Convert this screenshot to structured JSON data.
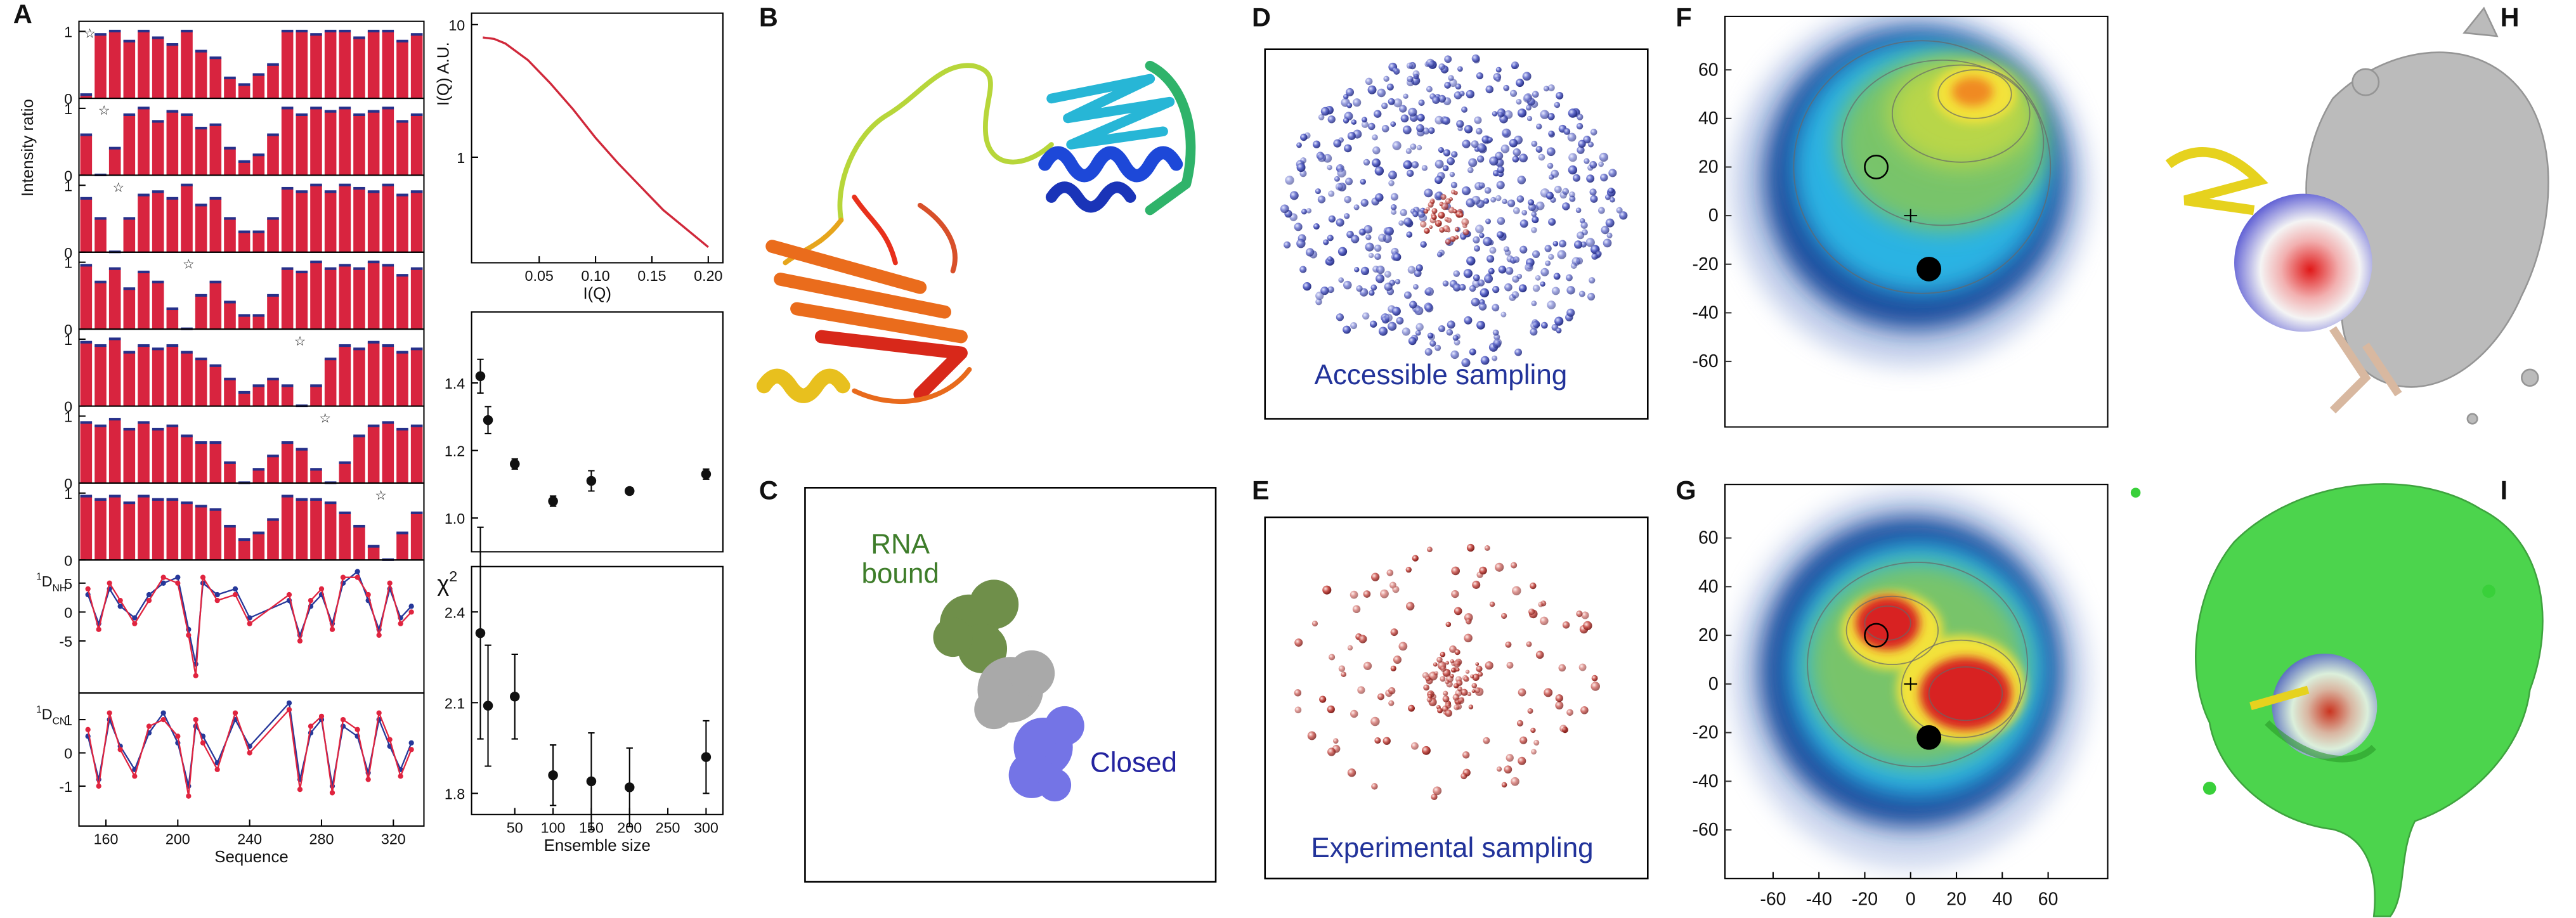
{
  "panel_labels": [
    "A",
    "B",
    "C",
    "D",
    "E",
    "F",
    "G",
    "H",
    "I"
  ],
  "c_labels": {
    "rna": [
      "RNA",
      "bound"
    ],
    "closed": "Closed"
  },
  "d_caption": "Accessible sampling",
  "e_caption": "Experimental sampling",
  "chart_data": [
    {
      "type": "strips",
      "ylabel": "Intensity ratio",
      "color": "#d8243f",
      "cap_color": "#26308a",
      "xlim": [
        145,
        337
      ],
      "ylim": [
        0,
        1.15
      ],
      "yticks": [
        0,
        1
      ],
      "x": [
        149,
        157,
        165,
        173,
        181,
        189,
        197,
        205,
        213,
        221,
        229,
        237,
        245,
        253,
        261,
        269,
        277,
        285,
        293,
        301,
        309,
        317,
        325,
        333
      ],
      "markers": {
        "symbol": "☆",
        "x": [
          151,
          159,
          167,
          206,
          268,
          282,
          313
        ]
      },
      "strips": [
        {
          "values": [
            0.05,
            0.95,
            1,
            0.85,
            1,
            0.9,
            0.8,
            1,
            0.7,
            0.6,
            0.3,
            0.2,
            0.35,
            0.5,
            1,
            1,
            0.95,
            1,
            1,
            0.9,
            1,
            1,
            0.85,
            0.95
          ]
        },
        {
          "values": [
            0.6,
            0,
            0.4,
            0.9,
            1,
            0.8,
            0.95,
            0.9,
            0.7,
            0.75,
            0.4,
            0.2,
            0.3,
            0.6,
            1,
            0.9,
            1,
            0.95,
            1,
            0.9,
            0.95,
            1,
            0.8,
            0.9
          ]
        },
        {
          "values": [
            0.8,
            0.5,
            0,
            0.5,
            0.85,
            0.9,
            0.8,
            1,
            0.7,
            0.8,
            0.5,
            0.3,
            0.3,
            0.5,
            0.95,
            0.9,
            1,
            0.9,
            1,
            0.95,
            0.9,
            1,
            0.85,
            0.9
          ]
        },
        {
          "values": [
            0.95,
            0.7,
            0.9,
            0.6,
            0.85,
            0.7,
            0.3,
            0,
            0.5,
            0.7,
            0.4,
            0.2,
            0.2,
            0.5,
            0.9,
            0.85,
            1,
            0.9,
            0.95,
            0.9,
            1,
            0.95,
            0.8,
            0.9
          ]
        },
        {
          "values": [
            0.95,
            0.9,
            1,
            0.8,
            0.9,
            0.85,
            0.9,
            0.8,
            0.7,
            0.6,
            0.4,
            0.2,
            0.3,
            0.4,
            0.3,
            0,
            0.3,
            0.7,
            0.9,
            0.85,
            0.95,
            0.9,
            0.8,
            0.85
          ]
        },
        {
          "values": [
            0.9,
            0.85,
            0.95,
            0.8,
            0.9,
            0.8,
            0.85,
            0.7,
            0.6,
            0.6,
            0.3,
            0,
            0.2,
            0.4,
            0.6,
            0.5,
            0.2,
            0,
            0.3,
            0.7,
            0.85,
            0.9,
            0.8,
            0.85
          ]
        },
        {
          "values": [
            0.95,
            0.9,
            0.95,
            0.85,
            0.95,
            0.9,
            0.9,
            0.85,
            0.8,
            0.75,
            0.5,
            0.3,
            0.4,
            0.6,
            0.95,
            0.9,
            0.9,
            0.85,
            0.7,
            0.5,
            0.2,
            0,
            0.4,
            0.7
          ]
        }
      ]
    },
    {
      "type": "line",
      "ylabel_pre": "1",
      "ylabel_main": "D",
      "ylabel_sub": "NH",
      "xlim": [
        145,
        337
      ],
      "ylim": [
        -14,
        9
      ],
      "yticks": [
        -5,
        0,
        5
      ],
      "x": [
        150,
        156,
        162,
        168,
        176,
        184,
        192,
        200,
        206,
        210,
        214,
        222,
        232,
        240,
        262,
        268,
        274,
        280,
        286,
        292,
        300,
        306,
        312,
        318,
        324,
        330
      ],
      "series": [
        {
          "color": "#26389a",
          "values": [
            3,
            -2,
            4,
            1,
            -1,
            3,
            5,
            6,
            -3,
            -9,
            5,
            3,
            4,
            -1,
            2,
            -4,
            1,
            3,
            -2,
            5,
            7,
            2,
            -3,
            4,
            -1,
            1
          ]
        },
        {
          "color": "#e0243f",
          "values": [
            4,
            -3,
            5,
            2,
            -2,
            2,
            6,
            5,
            -4,
            -11,
            6,
            2,
            3,
            -2,
            3,
            -5,
            2,
            4,
            -3,
            6,
            6,
            3,
            -4,
            5,
            -2,
            0
          ]
        }
      ]
    },
    {
      "type": "line",
      "ylabel_pre": "1",
      "ylabel_main": "D",
      "ylabel_sub": "CN",
      "xlabel": "Sequence",
      "xlim": [
        145,
        337
      ],
      "ylim": [
        -2.2,
        1.8
      ],
      "yticks": [
        -1,
        0,
        1
      ],
      "xticks": [
        160,
        200,
        240,
        280,
        320
      ],
      "x": [
        150,
        156,
        162,
        168,
        176,
        184,
        192,
        200,
        206,
        210,
        214,
        222,
        232,
        240,
        262,
        268,
        274,
        280,
        286,
        292,
        300,
        306,
        312,
        318,
        324,
        330
      ],
      "series": [
        {
          "color": "#26389a",
          "values": [
            0.5,
            -0.8,
            1,
            0.2,
            -0.5,
            0.6,
            1.2,
            0.3,
            -1,
            0.8,
            0.5,
            -0.3,
            1,
            0.2,
            1.5,
            -0.8,
            0.6,
            1,
            -1,
            0.8,
            0.5,
            -0.6,
            1,
            0.2,
            -0.5,
            0.3
          ]
        },
        {
          "color": "#e0243f",
          "values": [
            0.7,
            -1,
            1.2,
            0.1,
            -0.7,
            0.8,
            1,
            0.5,
            -1.3,
            1,
            0.3,
            -0.5,
            1.2,
            0,
            1.3,
            -1.1,
            0.8,
            1.1,
            -1.2,
            1,
            0.7,
            -0.8,
            1.2,
            0.4,
            -0.7,
            0.1
          ]
        }
      ]
    },
    {
      "type": "line",
      "log_y": true,
      "ylabel": "I(Q) A.U.",
      "xlabel": "I(Q)",
      "xlim": [
        -0.01,
        0.213
      ],
      "ylim": [
        0.16,
        12.2
      ],
      "yticks": [
        1,
        10
      ],
      "xticks": [
        0.05,
        {
          "value": 0.1,
          "label": "0.10"
        },
        0.15,
        {
          "value": 0.2,
          "label": "0.20"
        }
      ],
      "x": [
        0,
        0.01,
        0.02,
        0.04,
        0.06,
        0.08,
        0.1,
        0.12,
        0.14,
        0.16,
        0.18,
        0.2
      ],
      "series": [
        {
          "color": "#d0283a",
          "values": [
            8,
            7.8,
            7.2,
            5.4,
            3.6,
            2.3,
            1.4,
            0.9,
            0.6,
            0.4,
            0.29,
            0.21
          ]
        }
      ]
    },
    {
      "type": "errorbar",
      "xlim": [
        -6.5,
        322
      ],
      "ylim": [
        0.9,
        1.61
      ],
      "yticks": [
        {
          "value": 1,
          "label": "1.0"
        },
        1.2,
        1.4
      ],
      "x": [
        5,
        15,
        50,
        100,
        150,
        200,
        300
      ],
      "values": [
        1.42,
        1.29,
        1.16,
        1.05,
        1.11,
        1.08,
        1.13
      ],
      "errors": [
        0.05,
        0.04,
        0.015,
        0.015,
        0.03,
        0.01,
        0.015
      ]
    },
    {
      "type": "errorbar",
      "ylabel": "χ",
      "ylabel_sup": "2",
      "xlabel": "Ensemble size",
      "xlim": [
        -6.5,
        322
      ],
      "ylim": [
        1.73,
        2.55
      ],
      "yticks": [
        1.8,
        2.1,
        2.4
      ],
      "xticks": [
        50,
        100,
        150,
        200,
        250,
        300
      ],
      "x": [
        5,
        15,
        50,
        100,
        150,
        200,
        300
      ],
      "values": [
        2.33,
        2.09,
        2.12,
        1.86,
        1.84,
        1.82,
        1.92
      ],
      "errors": [
        0.35,
        0.2,
        0.14,
        0.1,
        0.16,
        0.13,
        0.12
      ]
    },
    {
      "type": "density",
      "variant": "accessible",
      "xlim": [
        -81,
        86
      ],
      "ylim": [
        -87,
        82
      ],
      "yticks": [
        -60,
        -40,
        -20,
        0,
        20,
        40,
        60
      ],
      "open_marker": [
        -15,
        20
      ],
      "cross": [
        0,
        0
      ],
      "filled_marker": [
        8,
        -22
      ]
    },
    {
      "type": "density",
      "variant": "experimental",
      "xlim": [
        -81,
        86
      ],
      "ylim": [
        -80,
        82
      ],
      "yticks": [
        -60,
        -40,
        -20,
        0,
        20,
        40,
        60
      ],
      "xticks": [
        -60,
        -40,
        -20,
        0,
        20,
        40,
        60
      ],
      "open_marker": [
        -15,
        20
      ],
      "cross": [
        0,
        0
      ],
      "filled_marker": [
        8,
        -22
      ]
    }
  ]
}
